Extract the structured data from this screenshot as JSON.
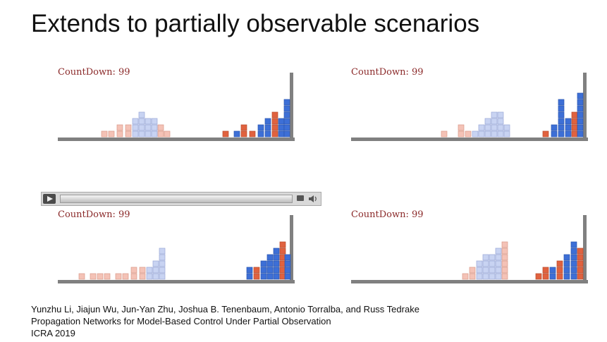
{
  "slide": {
    "title": "Extends to partially observable scenarios"
  },
  "panels": [
    {
      "countdown": "CountDown: 99"
    },
    {
      "countdown": "CountDown: 99"
    },
    {
      "countdown": "CountDown: 99"
    },
    {
      "countdown": "CountDown: 99"
    }
  ],
  "player": {
    "play_icon": "play-icon",
    "captions_icon": "captions-icon",
    "volume_icon": "volume-icon"
  },
  "citation": {
    "authors": "Yunzhu Li, Jiajun Wu, Jun-Yan Zhu, Joshua B. Tenenbaum, Antonio Torralba, and Russ Tedrake",
    "paper_title": "Propagation Networks for Model-Based Control Under Partial Observation",
    "venue": "ICRA 2019"
  },
  "colors": {
    "countdown_text": "#8b2a2a",
    "ground": "#808080",
    "light_blue_box": "#c8d3f2",
    "light_pink_box": "#f4c2b6",
    "blue_box": "#3d6fd6",
    "red_box": "#e0623f"
  }
}
